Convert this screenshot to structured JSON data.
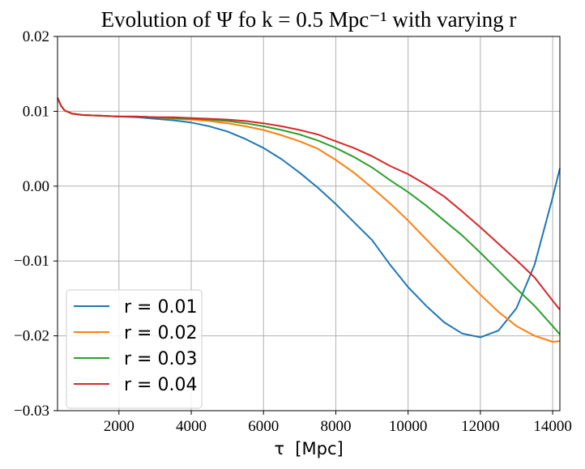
{
  "chart_data": {
    "type": "line",
    "title": "Evolution of Ψ fo k = 0.5 Mpc⁻¹ with varying r",
    "xlabel": "τ  [Mpc]",
    "ylabel": "",
    "xlim": [
      300,
      14200
    ],
    "ylim": [
      -0.03,
      0.02
    ],
    "xticks": [
      2000,
      4000,
      6000,
      8000,
      10000,
      12000,
      14000
    ],
    "xtick_labels": [
      "2000",
      "4000",
      "6000",
      "8000",
      "10000",
      "12000",
      "14000"
    ],
    "yticks": [
      -0.03,
      -0.02,
      -0.01,
      0.0,
      0.01,
      0.02
    ],
    "ytick_labels": [
      "−0.03",
      "−0.02",
      "−0.01",
      "0.00",
      "0.01",
      "0.02"
    ],
    "grid": true,
    "legend_position": "lower-left",
    "series": [
      {
        "name": "r = 0.01",
        "color": "#1f77b4",
        "x": [
          300,
          400,
          500,
          700,
          1000,
          1500,
          2000,
          2500,
          3000,
          3500,
          4000,
          4500,
          5000,
          5500,
          6000,
          6500,
          7000,
          7500,
          8000,
          8500,
          9000,
          9500,
          10000,
          10500,
          11000,
          11500,
          12000,
          12500,
          13000,
          13500,
          14000,
          14200
        ],
        "y": [
          0.0118,
          0.0107,
          0.0101,
          0.0097,
          0.0095,
          0.0094,
          0.0093,
          0.0092,
          0.009,
          0.0088,
          0.0085,
          0.008,
          0.0073,
          0.0063,
          0.0051,
          0.0036,
          0.0018,
          -0.0002,
          -0.0024,
          -0.0048,
          -0.0072,
          -0.0105,
          -0.0135,
          -0.016,
          -0.0182,
          -0.0197,
          -0.0202,
          -0.0193,
          -0.0163,
          -0.0105,
          -0.0015,
          0.0024
        ]
      },
      {
        "name": "r = 0.02",
        "color": "#ff7f0e",
        "x": [
          300,
          400,
          500,
          700,
          1000,
          1500,
          2000,
          2500,
          3000,
          3500,
          4000,
          4500,
          5000,
          5500,
          6000,
          6500,
          7000,
          7500,
          8000,
          8500,
          9000,
          9500,
          10000,
          10500,
          11000,
          11500,
          12000,
          12500,
          13000,
          13500,
          14000,
          14200
        ],
        "y": [
          0.0118,
          0.0107,
          0.0101,
          0.0097,
          0.0095,
          0.0094,
          0.0093,
          0.0093,
          0.0092,
          0.009,
          0.0089,
          0.0087,
          0.0084,
          0.008,
          0.0075,
          0.0068,
          0.006,
          0.005,
          0.0035,
          0.0018,
          -0.0002,
          -0.0023,
          -0.0046,
          -0.0071,
          -0.0096,
          -0.0121,
          -0.0145,
          -0.0168,
          -0.0187,
          -0.02,
          -0.0208,
          -0.0207
        ]
      },
      {
        "name": "r = 0.03",
        "color": "#2ca02c",
        "x": [
          300,
          400,
          500,
          700,
          1000,
          1500,
          2000,
          2500,
          3000,
          3500,
          4000,
          4500,
          5000,
          5500,
          6000,
          6500,
          7000,
          7500,
          8000,
          8500,
          9000,
          9500,
          10000,
          10500,
          11000,
          11500,
          12000,
          12500,
          13000,
          13500,
          14000,
          14200
        ],
        "y": [
          0.0118,
          0.0107,
          0.0101,
          0.0097,
          0.0095,
          0.0094,
          0.0093,
          0.0093,
          0.0092,
          0.0091,
          0.009,
          0.0089,
          0.0087,
          0.0084,
          0.008,
          0.0075,
          0.0069,
          0.0061,
          0.0051,
          0.0039,
          0.0025,
          0.0008,
          -0.0008,
          -0.0026,
          -0.0046,
          -0.0066,
          -0.0089,
          -0.0113,
          -0.0137,
          -0.016,
          -0.0187,
          -0.0198
        ]
      },
      {
        "name": "r = 0.04",
        "color": "#d62728",
        "x": [
          300,
          400,
          500,
          700,
          1000,
          1500,
          2000,
          2500,
          3000,
          3500,
          4000,
          4500,
          5000,
          5500,
          6000,
          6500,
          7000,
          7500,
          8000,
          8500,
          9000,
          9500,
          10000,
          10500,
          11000,
          11500,
          12000,
          12500,
          13000,
          13500,
          14000,
          14200
        ],
        "y": [
          0.0118,
          0.0107,
          0.0101,
          0.0097,
          0.0095,
          0.0094,
          0.0093,
          0.0093,
          0.0092,
          0.0092,
          0.0091,
          0.009,
          0.0089,
          0.0087,
          0.0084,
          0.008,
          0.0075,
          0.0069,
          0.006,
          0.0051,
          0.004,
          0.0027,
          0.0016,
          0.0002,
          -0.0014,
          -0.0034,
          -0.0055,
          -0.0077,
          -0.0099,
          -0.0122,
          -0.0153,
          -0.0165
        ]
      }
    ]
  }
}
